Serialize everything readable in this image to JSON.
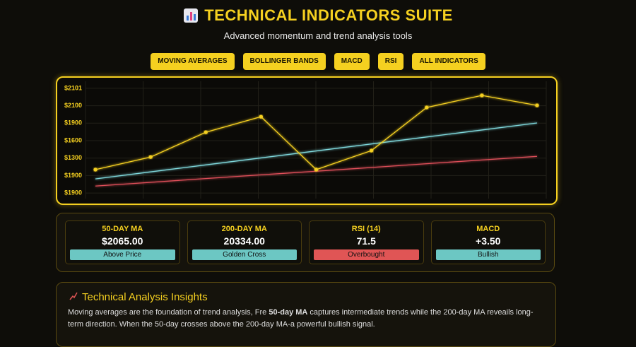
{
  "header": {
    "title": "TECHNICAL INDICATORS SUITE",
    "subtitle": "Advanced momentum and trend analysis tools"
  },
  "nav": [
    "MOVING AVERAGES",
    "BOLLINGER BANDS",
    "MACD",
    "RSI",
    "ALL INDICATORS"
  ],
  "chart_data": {
    "type": "line",
    "categories": [
      null,
      null,
      null,
      null,
      null,
      null,
      null,
      null,
      null
    ],
    "series": [
      {
        "color": "#f5d020",
        "marker": true,
        "values": [
          1.34,
          2.06,
          3.48,
          4.37,
          1.34,
          2.43,
          4.9,
          5.59,
          5.02
        ]
      },
      {
        "color": "#7fd8dc",
        "marker": false,
        "values": [
          0.81,
          1.21,
          1.61,
          2.01,
          2.41,
          2.81,
          3.21,
          3.61,
          4.01
        ]
      },
      {
        "color": "#e0505a",
        "marker": false,
        "values": [
          0.4,
          0.61,
          0.83,
          1.04,
          1.25,
          1.46,
          1.68,
          1.89,
          2.1
        ]
      }
    ],
    "ylim": [
      -0.32,
      6.4
    ],
    "yticks": [
      {
        "value": 0,
        "label": "$1900"
      },
      {
        "value": 1,
        "label": "$1900"
      },
      {
        "value": 2,
        "label": "$1300"
      },
      {
        "value": 3,
        "label": "$1600"
      },
      {
        "value": 4,
        "label": "$1900"
      },
      {
        "value": 5,
        "label": "$2100"
      },
      {
        "value": 6,
        "label": "$2101"
      }
    ],
    "grid": true
  },
  "cards": [
    {
      "label": "50-DAY MA",
      "value": "$2065.00",
      "status": "Above Price",
      "status_color": "#6cc7c3"
    },
    {
      "label": "200-DAY MA",
      "value": "20334.00",
      "status": "Golden Cross",
      "status_color": "#6cc7c3"
    },
    {
      "label": "RSI (14)",
      "value": "71.5",
      "status": "Overbought",
      "status_color": "#e05555"
    },
    {
      "label": "MACD",
      "value": "+3.50",
      "status": "Bullish",
      "status_color": "#6cc7c3"
    }
  ],
  "insights": {
    "title": "Technical Analysis Insights",
    "parts": [
      {
        "text": "Moving averages are the foundation of  trend analysis, Fre ",
        "bold": false
      },
      {
        "text": "50-day",
        "bold": true
      },
      {
        "text": " ",
        "bold": false
      },
      {
        "text": "MA",
        "bold": true
      },
      {
        "text": " captures intermediate trends while the 200-day MA reveails long-term direction. When the 50-day crosses above the 200-day MA-a powerful bullish signal.",
        "bold": false
      }
    ]
  }
}
